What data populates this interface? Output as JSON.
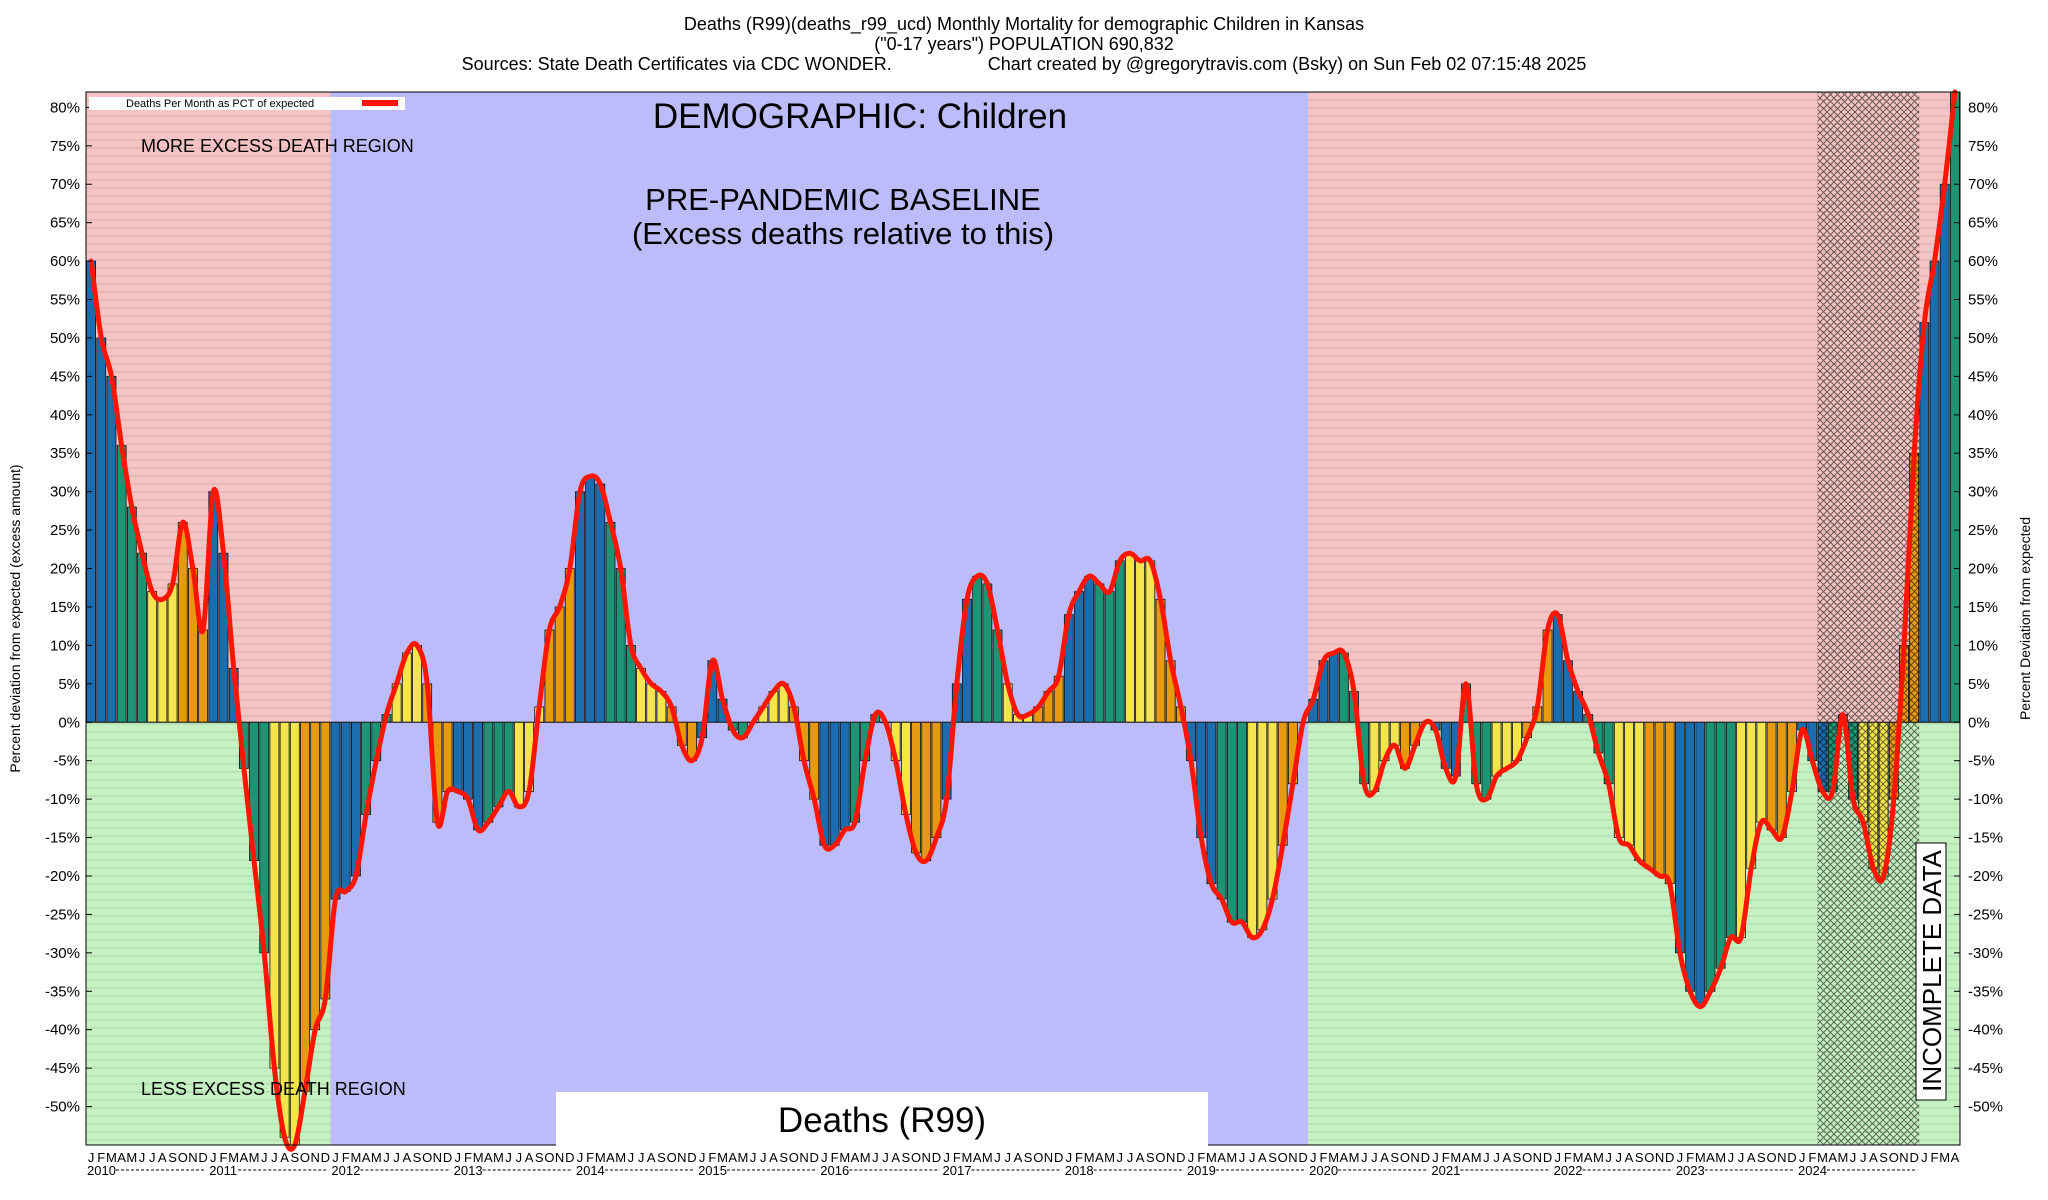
{
  "header": {
    "line1": "Deaths (R99)(deaths_r99_ucd) Monthly Mortality for demographic Children in Kansas",
    "line2": "(\"0-17 years\") POPULATION 690,832",
    "line3_left": "Sources: State Death Certificates via CDC WONDER.",
    "line3_right": "Chart created by @gregorytravis.com (Bsky) on Sun Feb 02 07:15:48 2025"
  },
  "colors": {
    "excess_region": "#f6c4c4",
    "less_region": "#c6f1c2",
    "baseline_region": "#bcbcfb",
    "line": "#ff1500",
    "bar_palette": [
      "#1a6eb0",
      "#1d9474",
      "#f4e44e",
      "#e59a10"
    ]
  },
  "chart_data": {
    "type": "bar",
    "title": "DEMOGRAPHIC: Children",
    "baseline_title": "PRE-PANDEMIC BASELINE",
    "baseline_subtitle": "(Excess deaths relative to this)",
    "cause_label": "Deaths (R99)",
    "region_more": "MORE EXCESS DEATH REGION",
    "region_less": "LESS EXCESS DEATH REGION",
    "incomplete_label": "INCOMPLETE DATA",
    "legend_label": "Deaths Per Month as PCT of expected",
    "legend_position": "top-left",
    "ylabel_left": "Percent deviation from expected (excess amount)",
    "ylabel_right": "Percent Deviation from expected",
    "ylim": [
      -55,
      82
    ],
    "y_ticks": [
      80,
      75,
      70,
      65,
      60,
      55,
      50,
      45,
      40,
      35,
      30,
      25,
      20,
      15,
      10,
      5,
      0,
      -5,
      -10,
      -15,
      -20,
      -25,
      -30,
      -35,
      -40,
      -45,
      -50
    ],
    "y_tick_suffix": "%",
    "grid": false,
    "x_start": "2010-01",
    "x_end": "2024-12",
    "month_letters": [
      "J",
      "F",
      "M",
      "A",
      "M",
      "J",
      "J",
      "A",
      "S",
      "O",
      "N",
      "D"
    ],
    "years": [
      "2010",
      "2011",
      "2012",
      "2013",
      "2014",
      "2015",
      "2016",
      "2017",
      "2018",
      "2019",
      "2020",
      "2021",
      "2022",
      "2023",
      "2024"
    ],
    "baseline_period": [
      "2012-01",
      "2019-12"
    ],
    "incomplete_period": [
      "2024-03",
      "2024-12"
    ],
    "series": [
      {
        "name": "Deaths Per Month as PCT of expected",
        "values": [
          60,
          50,
          45,
          36,
          28,
          22,
          17,
          16,
          18,
          26,
          20,
          12,
          30,
          22,
          7,
          -6,
          -18,
          -30,
          -45,
          -54,
          -55,
          -48,
          -40,
          -36,
          -23,
          -22,
          -20,
          -12,
          -5,
          1,
          5,
          9,
          10,
          5,
          -13,
          -9,
          -9,
          -10,
          -14,
          -13,
          -11,
          -9,
          -11,
          -9,
          2,
          12,
          15,
          20,
          30,
          32,
          31,
          26,
          20,
          10,
          7,
          5,
          4,
          2,
          -3,
          -5,
          -2,
          8,
          3,
          -1,
          -2,
          0,
          2,
          4,
          5,
          2,
          -5,
          -10,
          -16,
          -16,
          -14,
          -13,
          -5,
          1,
          0,
          -5,
          -12,
          -17,
          -18,
          -15,
          -10,
          5,
          16,
          19,
          18,
          12,
          5,
          1,
          1,
          2,
          4,
          6,
          14,
          17,
          19,
          18,
          17,
          21,
          22,
          21,
          21,
          16,
          8,
          2,
          -5,
          -15,
          -21,
          -23,
          -26,
          -26,
          -28,
          -27,
          -23,
          -16,
          -8,
          0,
          3,
          8,
          9,
          9,
          4,
          -8,
          -9,
          -5,
          -3,
          -6,
          -3,
          0,
          -1,
          -6,
          -7,
          5,
          -8,
          -10,
          -7,
          -6,
          -5,
          -2,
          2,
          12,
          14,
          8,
          4,
          1,
          -4,
          -8,
          -15,
          -16,
          -18,
          -19,
          -20,
          -21,
          -30,
          -35,
          -37,
          -35,
          -32,
          -28,
          -28,
          -19,
          -13,
          -14,
          -15,
          -9,
          -1,
          -5,
          -9,
          -9,
          1,
          -10,
          -13,
          -19,
          -20,
          -10,
          10,
          35,
          52,
          60,
          70,
          82
        ]
      }
    ]
  }
}
